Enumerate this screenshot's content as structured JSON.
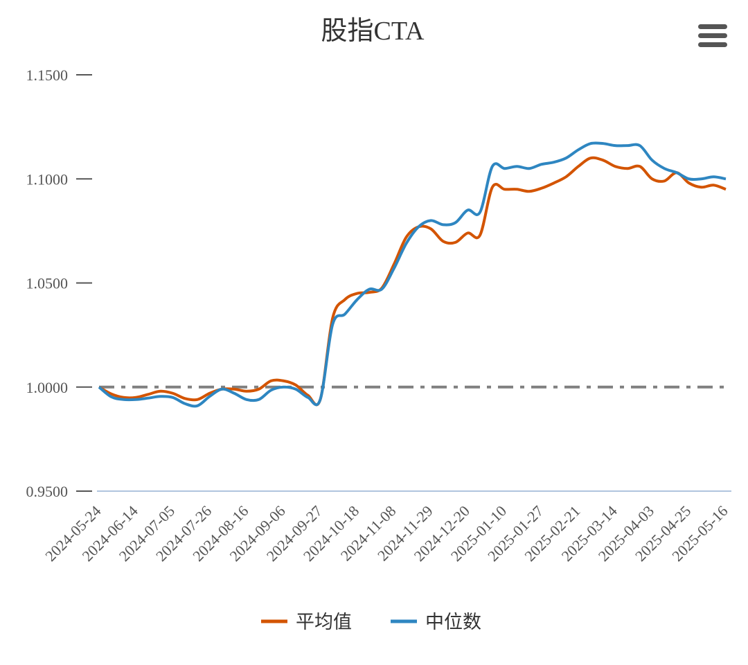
{
  "chart_data": {
    "type": "line",
    "title": "股指CTA",
    "categories": [
      "2024-05-24",
      null,
      null,
      "2024-06-14",
      null,
      null,
      "2024-07-05",
      null,
      null,
      "2024-07-26",
      null,
      null,
      "2024-08-16",
      null,
      null,
      "2024-09-06",
      null,
      null,
      "2024-09-27",
      null,
      null,
      "2024-10-18",
      null,
      null,
      "2024-11-08",
      null,
      null,
      "2024-11-29",
      null,
      null,
      "2024-12-20",
      null,
      null,
      "2025-01-10",
      null,
      null,
      "2025-01-27",
      null,
      null,
      "2025-02-21",
      null,
      null,
      "2025-03-14",
      null,
      null,
      "2025-04-03",
      null,
      null,
      "2025-04-25",
      null,
      null,
      "2025-05-16"
    ],
    "series": [
      {
        "name": "平均值",
        "color": "#d35400",
        "values": [
          1.0,
          0.9967,
          0.995,
          0.995,
          0.9965,
          0.998,
          0.997,
          0.9945,
          0.994,
          0.997,
          0.999,
          0.999,
          0.998,
          0.999,
          1.003,
          1.003,
          1.001,
          0.996,
          0.994,
          1.033,
          1.042,
          1.045,
          1.0455,
          1.0475,
          1.059,
          1.072,
          1.077,
          1.076,
          1.07,
          1.0695,
          1.074,
          1.073,
          1.096,
          1.095,
          1.095,
          1.094,
          1.0955,
          1.098,
          1.101,
          1.106,
          1.11,
          1.109,
          1.106,
          1.105,
          1.106,
          1.1,
          1.099,
          1.103,
          1.098,
          1.096,
          1.097,
          1.095
        ]
      },
      {
        "name": "中位数",
        "color": "#2e86c1",
        "values": [
          1.0,
          0.9953,
          0.994,
          0.994,
          0.9947,
          0.9955,
          0.995,
          0.992,
          0.991,
          0.9955,
          0.999,
          0.997,
          0.994,
          0.994,
          0.9985,
          1.0,
          0.999,
          0.995,
          0.994,
          1.03,
          1.035,
          1.042,
          1.047,
          1.047,
          1.057,
          1.069,
          1.077,
          1.08,
          1.078,
          1.079,
          1.085,
          1.084,
          1.106,
          1.105,
          1.106,
          1.105,
          1.107,
          1.108,
          1.11,
          1.114,
          1.117,
          1.117,
          1.116,
          1.116,
          1.116,
          1.109,
          1.105,
          1.103,
          1.1,
          1.1,
          1.101,
          1.1
        ]
      }
    ],
    "ylim": [
      0.95,
      1.15
    ],
    "yticks": [
      {
        "value": 0.95,
        "label": "0.9500"
      },
      {
        "value": 1.0,
        "label": "1.0000"
      },
      {
        "value": 1.05,
        "label": "1.0500"
      },
      {
        "value": 1.1,
        "label": "1.1000"
      },
      {
        "value": 1.15,
        "label": "1.1500"
      }
    ],
    "reference_line": 1.0,
    "legend": "bottom"
  }
}
